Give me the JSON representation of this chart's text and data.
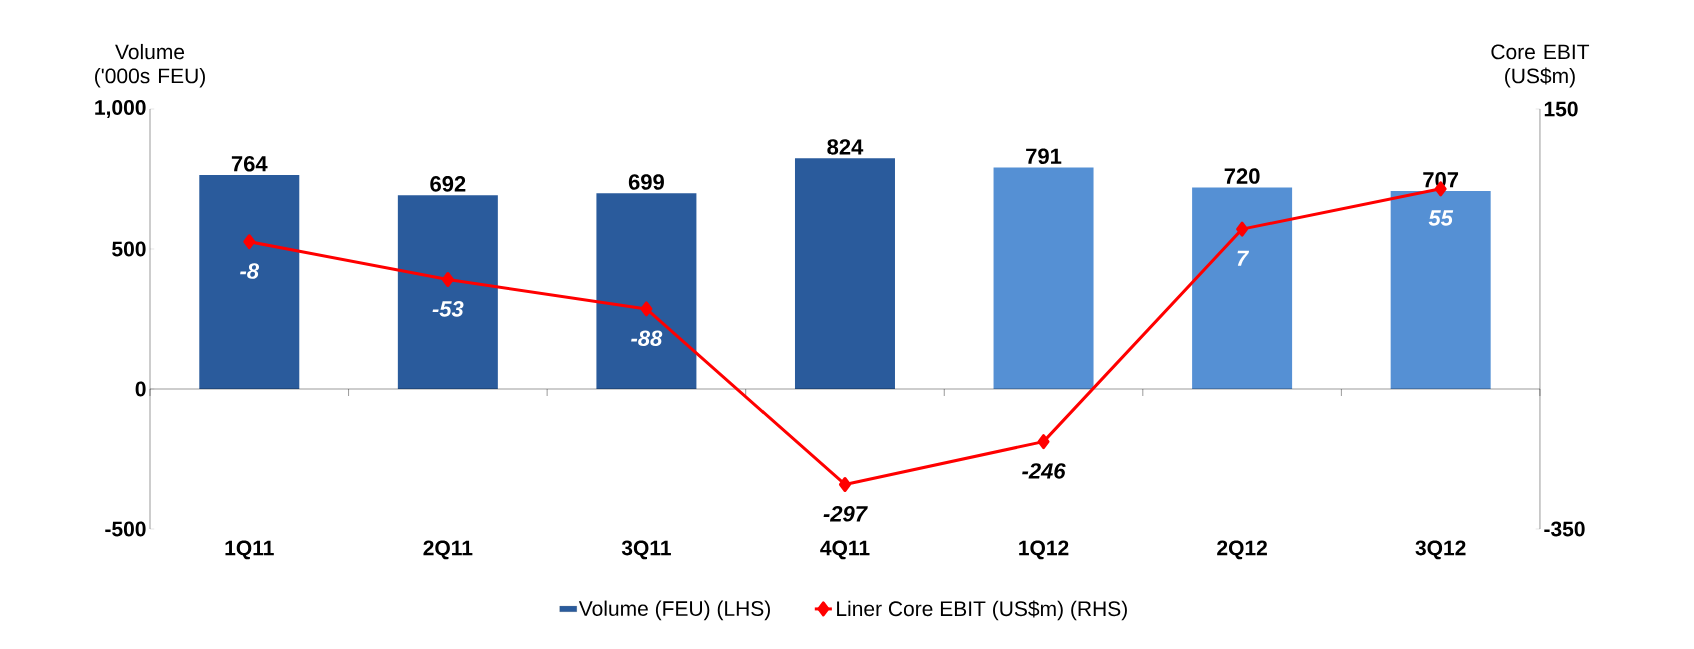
{
  "chart_data": {
    "type": "bar",
    "categories": [
      "1Q11",
      "2Q11",
      "3Q11",
      "4Q11",
      "1Q12",
      "2Q12",
      "3Q12"
    ],
    "ylabel": "Volume ('000s FEU)",
    "y2label": "Core EBIT (US$m)",
    "ylim": [
      -500,
      1000
    ],
    "yticks": [
      {
        "value": -500,
        "label": "-500"
      },
      0,
      500,
      {
        "value": 1000,
        "label": "1,000"
      }
    ],
    "y2lim": [
      -350,
      150
    ],
    "y2ticks": [
      -350,
      150
    ],
    "series": [
      {
        "name": "Volume (FEU) (LHS)",
        "color": "#2a5b9c",
        "colors": [
          "#2a5b9c",
          "#2a5b9c",
          "#2a5b9c",
          "#2a5b9c",
          "#5590d4",
          "#5590d4",
          "#5590d4"
        ],
        "values": [
          764,
          692,
          699,
          824,
          791,
          720,
          707
        ]
      },
      {
        "name": "Liner Core EBIT (US$m) (RHS)",
        "type": "line",
        "axis": "y2",
        "color": "#ff0000",
        "marker": "diamond",
        "values": [
          -8,
          -53,
          -88,
          -297,
          -246,
          7,
          55
        ]
      }
    ],
    "data_labels": true,
    "legend": "bottom"
  }
}
